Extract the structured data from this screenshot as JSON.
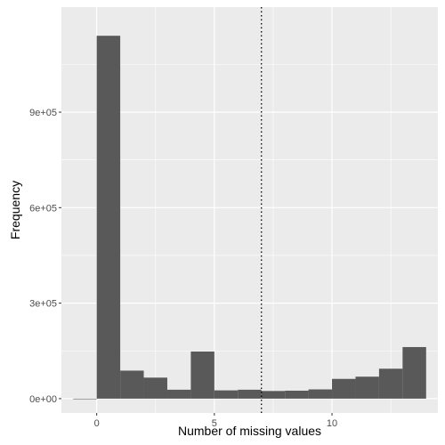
{
  "chart_data": {
    "type": "bar",
    "subtype": "histogram",
    "title": "",
    "xlabel": "Number of missing values",
    "ylabel": "Frequency",
    "xlim": [
      -1.5,
      14.5
    ],
    "ylim": [
      -45000,
      1230000
    ],
    "x_ticks": [
      0,
      5,
      10
    ],
    "x_tick_labels": [
      "0",
      "5",
      "10"
    ],
    "y_ticks": [
      0,
      300000,
      600000,
      900000
    ],
    "y_tick_labels": [
      "0e+00",
      "3e+05",
      "6e+05",
      "9e+05"
    ],
    "bin_width": 1,
    "bin_centers": [
      -0.5,
      0.5,
      1.5,
      2.5,
      3.5,
      4.5,
      5.5,
      6.5,
      7.5,
      8.5,
      9.5,
      10.5,
      11.5,
      12.5,
      13.5
    ],
    "values": [
      0,
      1140000,
      88000,
      66000,
      28000,
      148000,
      26000,
      28000,
      24000,
      25000,
      29000,
      62000,
      69000,
      94000,
      162000
    ],
    "reference_line": {
      "x": 7.0,
      "style": "dotted",
      "color": "#000000"
    },
    "bar_color": "#595959",
    "panel_background": "#ebebeb",
    "grid": true,
    "grid_color": "#ffffff",
    "legend": "none"
  }
}
